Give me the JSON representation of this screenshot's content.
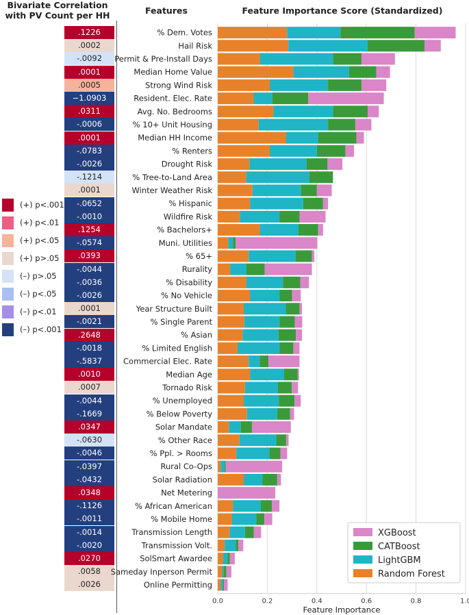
{
  "header": {
    "corr_title": "Bivariate Correlation with PV Count per HH",
    "features_title": "Features",
    "importance_title": "Feature Importance Score (Standardized)"
  },
  "significance_legend": [
    {
      "label": "(+) p<.001",
      "color": "#b5002b"
    },
    {
      "label": "(+) p<.01",
      "color": "#ee5d86"
    },
    {
      "label": "(+) p<.05",
      "color": "#f5b39b"
    },
    {
      "label": "(+) p>.05",
      "color": "#ead8cf"
    },
    {
      "label": "(–) p>.05",
      "color": "#d4e2f8"
    },
    {
      "label": "(–) p<.05",
      "color": "#a8c0f2"
    },
    {
      "label": "(–) p<.01",
      "color": "#a58fe6"
    },
    {
      "label": "(–) p<.001",
      "color": "#233f7e"
    }
  ],
  "correlations": [
    {
      "value": ".1226",
      "color": "#b5002b"
    },
    {
      "value": ".0002",
      "color": "#ead8cf"
    },
    {
      "value": "-.0092",
      "color": "#d4e2f8"
    },
    {
      "value": ".0001",
      "color": "#b5002b"
    },
    {
      "value": ".0005",
      "color": "#f5b39b"
    },
    {
      "value": "−1.0903",
      "color": "#233f7e"
    },
    {
      "value": ".0311",
      "color": "#b5002b"
    },
    {
      "value": "-.0006",
      "color": "#233f7e"
    },
    {
      "value": ".0001",
      "color": "#b5002b"
    },
    {
      "value": "-.0783",
      "color": "#233f7e"
    },
    {
      "value": "-.0026",
      "color": "#233f7e"
    },
    {
      "value": "-.1214",
      "color": "#d4e2f8"
    },
    {
      "value": ".0001",
      "color": "#ead8cf"
    },
    {
      "value": "-.0652",
      "color": "#233f7e"
    },
    {
      "value": "-.0010",
      "color": "#233f7e"
    },
    {
      "value": ".1254",
      "color": "#b5002b"
    },
    {
      "value": "-.0574",
      "color": "#233f7e"
    },
    {
      "value": ".0393",
      "color": "#b5002b"
    },
    {
      "value": "-.0044",
      "color": "#233f7e"
    },
    {
      "value": "-.0036",
      "color": "#233f7e"
    },
    {
      "value": "-.0026",
      "color": "#233f7e"
    },
    {
      "value": ".0001",
      "color": "#ead8cf"
    },
    {
      "value": "-.0021",
      "color": "#233f7e"
    },
    {
      "value": ".2648",
      "color": "#b5002b"
    },
    {
      "value": "-.0018",
      "color": "#233f7e"
    },
    {
      "value": "-.5837",
      "color": "#233f7e"
    },
    {
      "value": ".0010",
      "color": "#b5002b"
    },
    {
      "value": ".0007",
      "color": "#ead8cf"
    },
    {
      "value": "-.0044",
      "color": "#233f7e"
    },
    {
      "value": "-.1669",
      "color": "#233f7e"
    },
    {
      "value": ".0347",
      "color": "#b5002b"
    },
    {
      "value": "-.0630",
      "color": "#d4e2f8"
    },
    {
      "value": "-.0046",
      "color": "#233f7e"
    },
    {
      "value": "-.0397",
      "color": "#233f7e"
    },
    {
      "value": "-.0432",
      "color": "#233f7e"
    },
    {
      "value": ".0348",
      "color": "#b5002b"
    },
    {
      "value": "-.1126",
      "color": "#233f7e"
    },
    {
      "value": "-.0011",
      "color": "#233f7e"
    },
    {
      "value": "-.0014",
      "color": "#233f7e"
    },
    {
      "value": "-.0020",
      "color": "#233f7e"
    },
    {
      "value": ".0270",
      "color": "#b5002b"
    },
    {
      "value": ".0058",
      "color": "#ead8cf"
    },
    {
      "value": ".0026",
      "color": "#ead8cf"
    }
  ],
  "chart_data": {
    "type": "bar",
    "orientation": "horizontal",
    "stacked": true,
    "xlabel": "Feature Importance",
    "xlim": [
      0,
      1.0
    ],
    "xticks": [
      0.0,
      0.2,
      0.4,
      0.6,
      0.8,
      1.0
    ],
    "grid": "vertical",
    "legend_position": "bottom-right",
    "categories": [
      "% Dem. Votes",
      "Hail Risk",
      "Permit & Pre-Install Days",
      "Median Home Value",
      "Strong Wind Risk",
      "Resident. Elec. Rate",
      "Avg. No. Bedrooms",
      "% 10+ Unit Housing",
      "Median HH Income",
      "% Renters",
      "Drought Risk",
      "% Tree-to-Land Area",
      "Winter Weather Risk",
      "% Hispanic",
      "Wildfire Risk",
      "% Bachelors+",
      "Muni. Utilities",
      "% 65+",
      "Rurality",
      "% Disability",
      "% No Vehicle",
      "Year Structure Built",
      "% Single Parent",
      "% Asian",
      "% Limited English",
      "Commercial Elec. Rate",
      "Median Age",
      "Tornado Risk",
      "% Unemployed",
      "% Below Poverty",
      "Solar Mandate",
      "% Other Race",
      "% Ppl. > Rooms",
      "Rural Co-Ops",
      "Solar Radiation",
      "Net Metering",
      "% African American",
      "% Mobile Home",
      "Transmission Length",
      "Transmission Volt.",
      "SolSmart Awardee",
      "Sameday Inperson Permit",
      "Online Permitting"
    ],
    "series": [
      {
        "name": "Random Forest",
        "color": "#e8822a",
        "values": [
          0.28,
          0.285,
          0.17,
          0.305,
          0.21,
          0.145,
          0.225,
          0.165,
          0.275,
          0.21,
          0.128,
          0.115,
          0.14,
          0.13,
          0.09,
          0.17,
          0.042,
          0.125,
          0.05,
          0.115,
          0.13,
          0.105,
          0.107,
          0.1,
          0.08,
          0.125,
          0.13,
          0.11,
          0.105,
          0.118,
          0.045,
          0.088,
          0.075,
          0.012,
          0.105,
          0.0,
          0.062,
          0.058,
          0.048,
          0.028,
          0.022,
          0.018,
          0.012
        ]
      },
      {
        "name": "LightGBM",
        "color": "#1fb5c6",
        "values": [
          0.215,
          0.32,
          0.295,
          0.225,
          0.235,
          0.075,
          0.24,
          0.28,
          0.13,
          0.19,
          0.23,
          0.255,
          0.195,
          0.215,
          0.16,
          0.155,
          0.02,
          0.19,
          0.065,
          0.148,
          0.12,
          0.17,
          0.142,
          0.145,
          0.17,
          0.045,
          0.138,
          0.132,
          0.142,
          0.122,
          0.048,
          0.148,
          0.133,
          0.017,
          0.075,
          0.0,
          0.112,
          0.098,
          0.062,
          0.045,
          0.017,
          0.007,
          0.009
        ]
      },
      {
        "name": "CATBoost",
        "color": "#3a9a3a",
        "values": [
          0.3,
          0.23,
          0.115,
          0.11,
          0.135,
          0.145,
          0.14,
          0.11,
          0.155,
          0.115,
          0.085,
          0.095,
          0.065,
          0.08,
          0.08,
          0.08,
          0.01,
          0.065,
          0.075,
          0.07,
          0.05,
          0.055,
          0.062,
          0.07,
          0.055,
          0.035,
          0.055,
          0.057,
          0.063,
          0.052,
          0.045,
          0.04,
          0.045,
          0.003,
          0.06,
          0.0,
          0.045,
          0.032,
          0.035,
          0.01,
          0.01,
          0.01,
          0.004
        ]
      },
      {
        "name": "XGBoost",
        "color": "#da86c8",
        "values": [
          0.165,
          0.065,
          0.135,
          0.055,
          0.1,
          0.305,
          0.045,
          0.065,
          0.03,
          0.035,
          0.06,
          0.0,
          0.06,
          0.02,
          0.105,
          0.02,
          0.33,
          0.01,
          0.19,
          0.035,
          0.035,
          0.01,
          0.03,
          0.025,
          0.025,
          0.125,
          0.005,
          0.025,
          0.025,
          0.016,
          0.157,
          0.01,
          0.027,
          0.228,
          0.015,
          0.232,
          0.03,
          0.032,
          0.03,
          0.02,
          0.02,
          0.02,
          0.015
        ]
      }
    ],
    "legend_order": [
      "XGBoost",
      "CATBoost",
      "LightGBM",
      "Random Forest"
    ]
  }
}
